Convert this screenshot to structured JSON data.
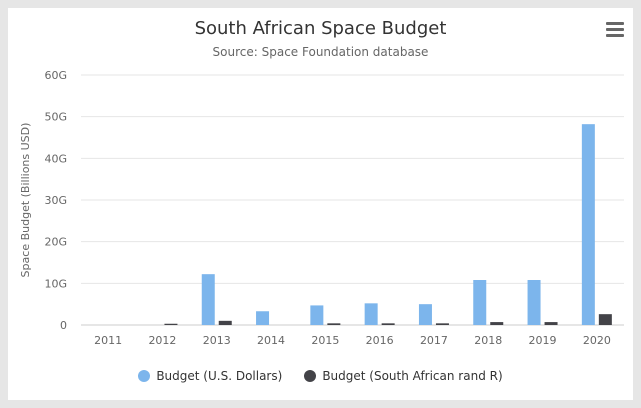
{
  "chart_data": {
    "type": "bar",
    "title": "South African Space Budget",
    "subtitle": "Source: Space Foundation database",
    "ylabel": "Space Budget (Billions USD)",
    "categories": [
      "2011",
      "2012",
      "2013",
      "2014",
      "2015",
      "2016",
      "2017",
      "2018",
      "2019",
      "2020"
    ],
    "y_ticks": [
      "0",
      "10G",
      "20G",
      "30G",
      "40G",
      "50G",
      "60G"
    ],
    "ylim": [
      0,
      60
    ],
    "grid": true,
    "legend_position": "bottom",
    "series": [
      {
        "name": "Budget (U.S. Dollars)",
        "color": "#7cb5ec",
        "values": [
          0,
          0,
          12.2,
          3.3,
          4.7,
          5.2,
          5.0,
          10.8,
          10.8,
          48.2
        ]
      },
      {
        "name": "Budget (South African rand R)",
        "color": "#434348",
        "values": [
          0,
          0.3,
          1.0,
          0,
          0.4,
          0.4,
          0.4,
          0.7,
          0.7,
          2.6
        ]
      }
    ]
  },
  "menu": {
    "icon": "hamburger-menu-icon"
  }
}
